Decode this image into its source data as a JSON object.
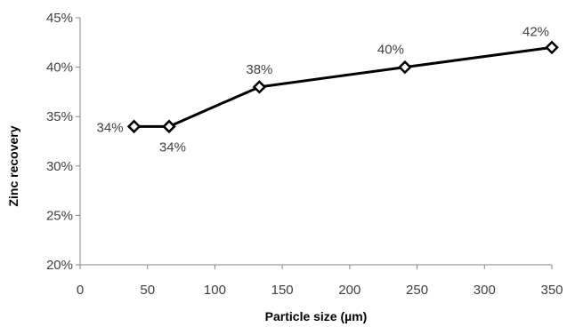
{
  "chart_data": {
    "type": "line",
    "xlabel": "Particle size (µm)",
    "ylabel": "Zinc recovery",
    "xlim": [
      0,
      350
    ],
    "ylim": [
      0.2,
      0.45
    ],
    "x_ticks": [
      0,
      50,
      100,
      150,
      200,
      250,
      300,
      350
    ],
    "x_tick_labels": [
      "0",
      "50",
      "100",
      "150",
      "200",
      "250",
      "300",
      "350"
    ],
    "y_ticks": [
      0.2,
      0.25,
      0.3,
      0.35,
      0.4,
      0.45
    ],
    "y_tick_labels": [
      "20%",
      "25%",
      "30%",
      "35%",
      "40%",
      "45%"
    ],
    "grid": false,
    "legend": false,
    "series": [
      {
        "x": [
          40,
          66,
          133,
          241,
          350
        ],
        "y": [
          0.34,
          0.34,
          0.38,
          0.4,
          0.42
        ],
        "labels": [
          "34%",
          "34%",
          "38%",
          "40%",
          "42%"
        ],
        "marker": "diamond",
        "color": "#000000"
      }
    ]
  }
}
